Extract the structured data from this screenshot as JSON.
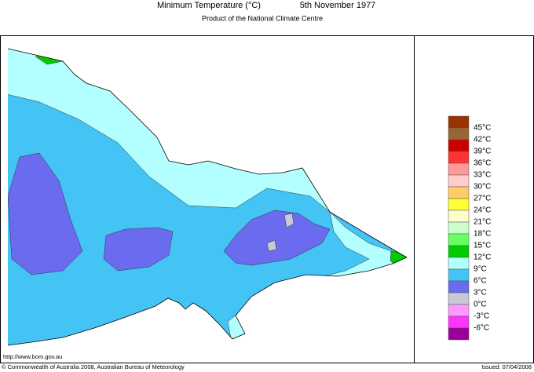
{
  "header": {
    "title": "Minimum Temperature (°C)",
    "date": "5th November 1977",
    "subtitle": "Product of the National Climate Centre"
  },
  "legend": {
    "colors": [
      "#993300",
      "#996633",
      "#cc0000",
      "#ff3333",
      "#ff9999",
      "#ffcccc",
      "#ffcc66",
      "#ffff33",
      "#ffffcc",
      "#ccffcc",
      "#66ff66",
      "#00cc00",
      "#b3ffff",
      "#44c4f4",
      "#6b6bf0",
      "#c8c8d8",
      "#ff99ff",
      "#ff33ff",
      "#990099"
    ],
    "labels": [
      "45°C",
      "42°C",
      "39°C",
      "36°C",
      "33°C",
      "30°C",
      "27°C",
      "24°C",
      "21°C",
      "18°C",
      "15°C",
      "12°C",
      "9°C",
      "6°C",
      "3°C",
      "0°C",
      "-3°C",
      "-6°C"
    ]
  },
  "footer": {
    "url": "http://www.bom.gov.au",
    "copyright": "© Commonwealth of Australia 2008, Australian Bureau of Meteorology",
    "issued": "Issued: 07/04/2008"
  }
}
